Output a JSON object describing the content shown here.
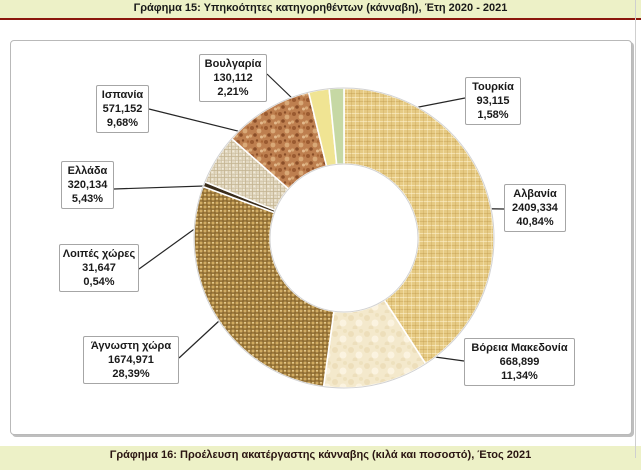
{
  "header": {
    "title": "Γράφημα 15: Υπηκοότητες κατηγορηθέντων (κάνναβη), Έτη 2020 - 2021"
  },
  "footer": {
    "title": "Γράφημα 16: Προέλευση ακατέργαστης κάνναβης (κιλά και ποσοστό), Έτος 2021"
  },
  "theme": {
    "band_background": "#EDF1C7",
    "band_rule_color": "#8B170D",
    "callout_border": "#A6A6A6",
    "leader_line_color": "#262626"
  },
  "chart_data": {
    "type": "pie",
    "subtype": "donut",
    "hole_ratio": 0.49,
    "start_angle_deg": 0,
    "direction": "clockwise",
    "legend": "none",
    "slices": [
      {
        "key": "albania",
        "label": "Αλβανία",
        "value": "2409,334",
        "pct_label": "40,84%",
        "pct": 40.84,
        "texture": "tan-linen",
        "color": "#E6CA83"
      },
      {
        "key": "north-macedonia",
        "label": "Βόρεια Μακεδονία",
        "value": "668,899",
        "pct_label": "11,34%",
        "pct": 11.34,
        "texture": "cream-parchment",
        "color": "#F4E9CC"
      },
      {
        "key": "unknown-country",
        "label": "Άγνωστη χώρα",
        "value": "1674,971",
        "pct_label": "28,39%",
        "pct": 28.39,
        "texture": "brown-burlap",
        "color": "#C9A35B"
      },
      {
        "key": "other-countries",
        "label": "Λοιπές χώρες",
        "value": "31,647",
        "pct_label": "0,54%",
        "pct": 0.54,
        "texture": null,
        "color": "#3B2D1B"
      },
      {
        "key": "greece",
        "label": "Ελλάδα",
        "value": "320,134",
        "pct_label": "5,43%",
        "pct": 5.43,
        "texture": "beige-canvas",
        "color": "#E2D8C1"
      },
      {
        "key": "spain",
        "label": "Ισπανία",
        "value": "571,152",
        "pct_label": "9,68%",
        "pct": 9.68,
        "texture": "cork",
        "color": "#BE7F4F"
      },
      {
        "key": "bulgaria",
        "label": "Βουλγαρία",
        "value": "130,112",
        "pct_label": "2,21%",
        "pct": 2.21,
        "texture": null,
        "color": "#F0E493"
      },
      {
        "key": "turkey",
        "label": "Τουρκία",
        "value": "93,115",
        "pct_label": "1,58%",
        "pct": 1.58,
        "texture": null,
        "color": "#C6D8A4"
      }
    ]
  }
}
